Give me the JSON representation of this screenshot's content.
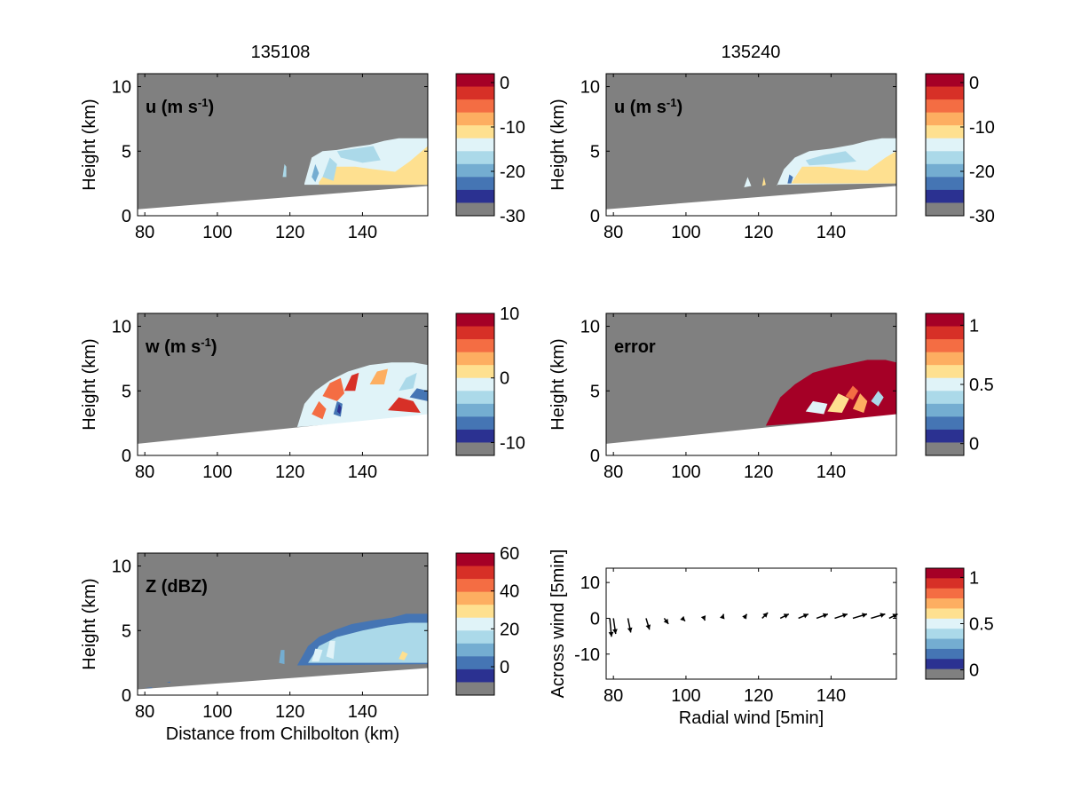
{
  "column_titles": [
    "135108",
    "135240"
  ],
  "colors": {
    "masked": "#808080",
    "palette": [
      "#2b3191",
      "#4575b4",
      "#74add1",
      "#abd9e9",
      "#e0f3f8",
      "#fee090",
      "#fdae61",
      "#f46d43",
      "#d73027",
      "#a50026"
    ]
  },
  "chart_data": [
    {
      "type": "heatmap",
      "panel": "u-135108",
      "label": "u (m s",
      "label_sup": "-1",
      "label_close": ")",
      "ylabel": "Height (km)",
      "xlabel": "",
      "xlim": [
        78,
        158
      ],
      "ylim": [
        0,
        11
      ],
      "xticks": [
        80,
        100,
        120,
        140
      ],
      "yticks": [
        0,
        5,
        10
      ],
      "colorbar": {
        "range": [
          -30,
          2
        ],
        "ticks": [
          0,
          -10,
          -20,
          -30
        ]
      }
    },
    {
      "type": "heatmap",
      "panel": "u-135240",
      "label": "u (m s",
      "label_sup": "-1",
      "label_close": ")",
      "ylabel": "Height (km)",
      "xlabel": "",
      "xlim": [
        78,
        158
      ],
      "ylim": [
        0,
        11
      ],
      "xticks": [
        80,
        100,
        120,
        140
      ],
      "yticks": [
        0,
        5,
        10
      ],
      "colorbar": {
        "range": [
          -30,
          2
        ],
        "ticks": [
          0,
          -10,
          -20,
          -30
        ]
      }
    },
    {
      "type": "heatmap",
      "panel": "w-135108",
      "label": "w (m s",
      "label_sup": "-1",
      "label_close": ")",
      "ylabel": "Height (km)",
      "xlabel": "",
      "xlim": [
        78,
        158
      ],
      "ylim": [
        0,
        11
      ],
      "xticks": [
        80,
        100,
        120,
        140
      ],
      "yticks": [
        0,
        5,
        10
      ],
      "colorbar": {
        "range": [
          -12,
          10
        ],
        "ticks": [
          10,
          0,
          -10
        ]
      }
    },
    {
      "type": "heatmap",
      "panel": "error-135240",
      "label": "error",
      "label_sup": "",
      "label_close": "",
      "ylabel": "Height (km)",
      "xlabel": "",
      "xlim": [
        78,
        158
      ],
      "ylim": [
        0,
        11
      ],
      "xticks": [
        80,
        100,
        120,
        140
      ],
      "yticks": [
        0,
        5,
        10
      ],
      "colorbar": {
        "range": [
          -0.1,
          1.1
        ],
        "ticks": [
          1,
          0.5,
          0
        ]
      }
    },
    {
      "type": "heatmap",
      "panel": "Z-135108",
      "label": "Z (dBZ)",
      "label_sup": "",
      "label_close": "",
      "ylabel": "Height (km)",
      "xlabel": "Distance from Chilbolton (km)",
      "xlim": [
        78,
        158
      ],
      "ylim": [
        0,
        11
      ],
      "xticks": [
        80,
        100,
        120,
        140
      ],
      "yticks": [
        0,
        5,
        10
      ],
      "colorbar": {
        "range": [
          -15,
          60
        ],
        "ticks": [
          60,
          40,
          20,
          0
        ]
      }
    },
    {
      "type": "scatter",
      "panel": "wind-vectors",
      "label": "",
      "label_sup": "",
      "label_close": "",
      "ylabel": "Across wind [5min]",
      "xlabel": "Radial wind [5min]",
      "xlim": [
        78,
        158
      ],
      "ylim": [
        -17,
        14
      ],
      "xticks": [
        80,
        100,
        120,
        140
      ],
      "yticks": [
        10,
        0,
        -10
      ],
      "vectors": [
        {
          "x": 79,
          "u": 0.6,
          "v": 6.5
        },
        {
          "x": 80,
          "u": 0.8,
          "v": 5.5
        },
        {
          "x": 84,
          "u": 1.0,
          "v": 5.0
        },
        {
          "x": 89,
          "u": 1.2,
          "v": 4.0
        },
        {
          "x": 94,
          "u": 1.5,
          "v": 2.0
        },
        {
          "x": 99,
          "u": 1.0,
          "v": 1.0
        },
        {
          "x": 105,
          "u": 0.3,
          "v": 0.8
        },
        {
          "x": 110,
          "u": 0.5,
          "v": -1.5
        },
        {
          "x": 116,
          "u": 1.0,
          "v": -1.5
        },
        {
          "x": 121,
          "u": 2.0,
          "v": -2.0
        },
        {
          "x": 126,
          "u": 3.0,
          "v": -1.5
        },
        {
          "x": 131,
          "u": 3.5,
          "v": -1.5
        },
        {
          "x": 136,
          "u": 4.0,
          "v": -1.5
        },
        {
          "x": 141,
          "u": 4.5,
          "v": -1.5
        },
        {
          "x": 146,
          "u": 5.0,
          "v": -1.5
        },
        {
          "x": 151,
          "u": 5.0,
          "v": -1.5
        },
        {
          "x": 156,
          "u": 3.0,
          "v": -1.5
        }
      ],
      "colorbar": {
        "range": [
          -0.1,
          1.1
        ],
        "ticks": [
          1,
          0.5,
          0
        ]
      }
    }
  ]
}
